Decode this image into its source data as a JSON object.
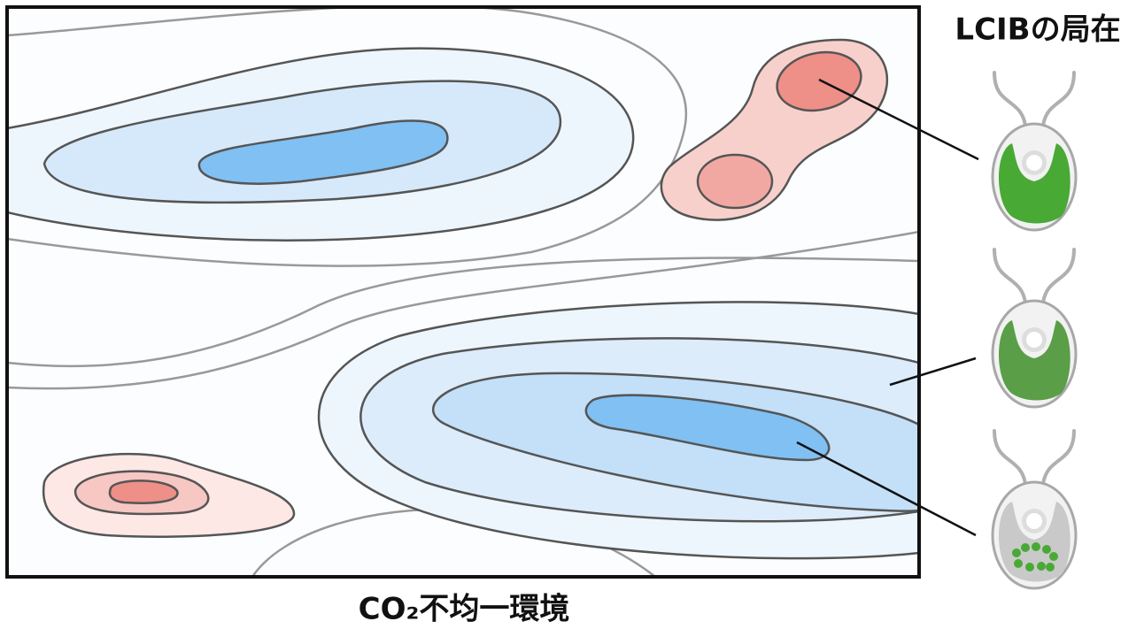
{
  "header": {
    "title": "LCIBの局在"
  },
  "caption": "CO₂不均一環境"
}
